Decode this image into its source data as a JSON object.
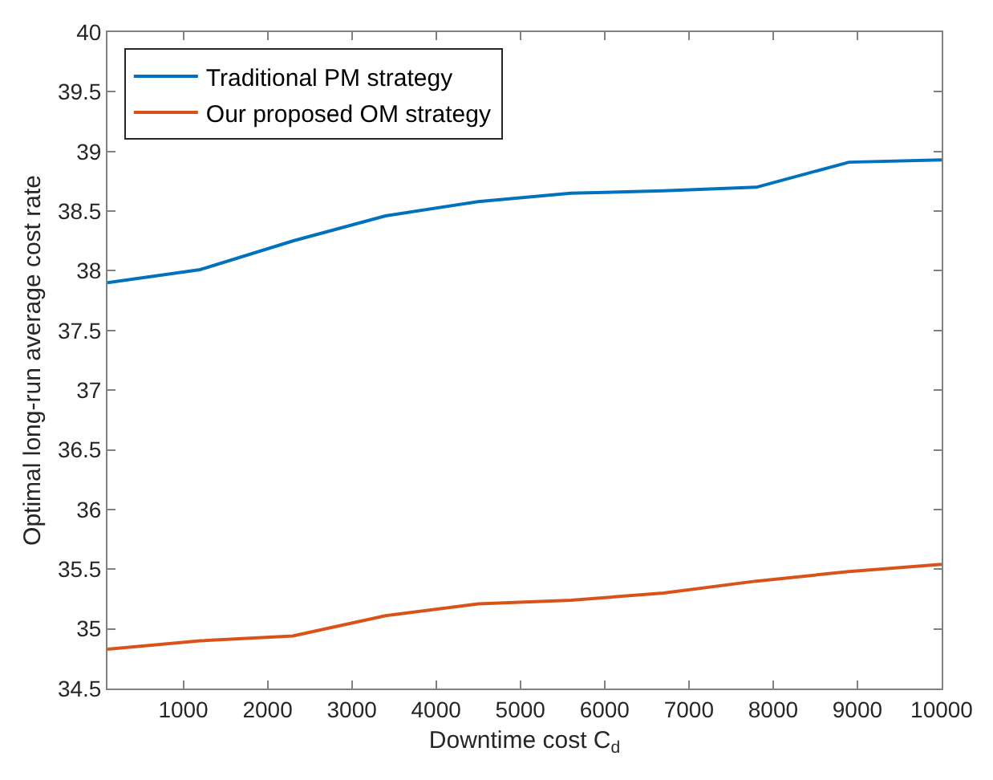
{
  "chart_data": {
    "type": "line",
    "xlabel": "Downtime cost C$_{d}$",
    "ylabel": "Optimal long-run average cost rate",
    "x": [
      100,
      1200,
      2300,
      3400,
      4500,
      5600,
      6700,
      7800,
      8900,
      10000
    ],
    "series": [
      {
        "name": "Traditional PM strategy",
        "color": "#0072bd",
        "values": [
          37.9,
          38.01,
          38.25,
          38.46,
          38.58,
          38.65,
          38.67,
          38.7,
          38.91,
          38.93
        ]
      },
      {
        "name": "Our proposed OM strategy",
        "color": "#d95319",
        "values": [
          34.83,
          34.9,
          34.94,
          35.11,
          35.21,
          35.24,
          35.3,
          35.4,
          35.48,
          35.54
        ]
      }
    ],
    "xlim": [
      100,
      10000
    ],
    "xticks": [
      1000,
      2000,
      3000,
      4000,
      5000,
      6000,
      7000,
      8000,
      9000,
      10000
    ],
    "ylim": [
      34.5,
      40
    ],
    "yticks": [
      34.5,
      35,
      35.5,
      36,
      36.5,
      37,
      37.5,
      38,
      38.5,
      39,
      39.5,
      40
    ],
    "grid": false,
    "legend": "top left",
    "marker": "none",
    "line_style": "solid"
  }
}
